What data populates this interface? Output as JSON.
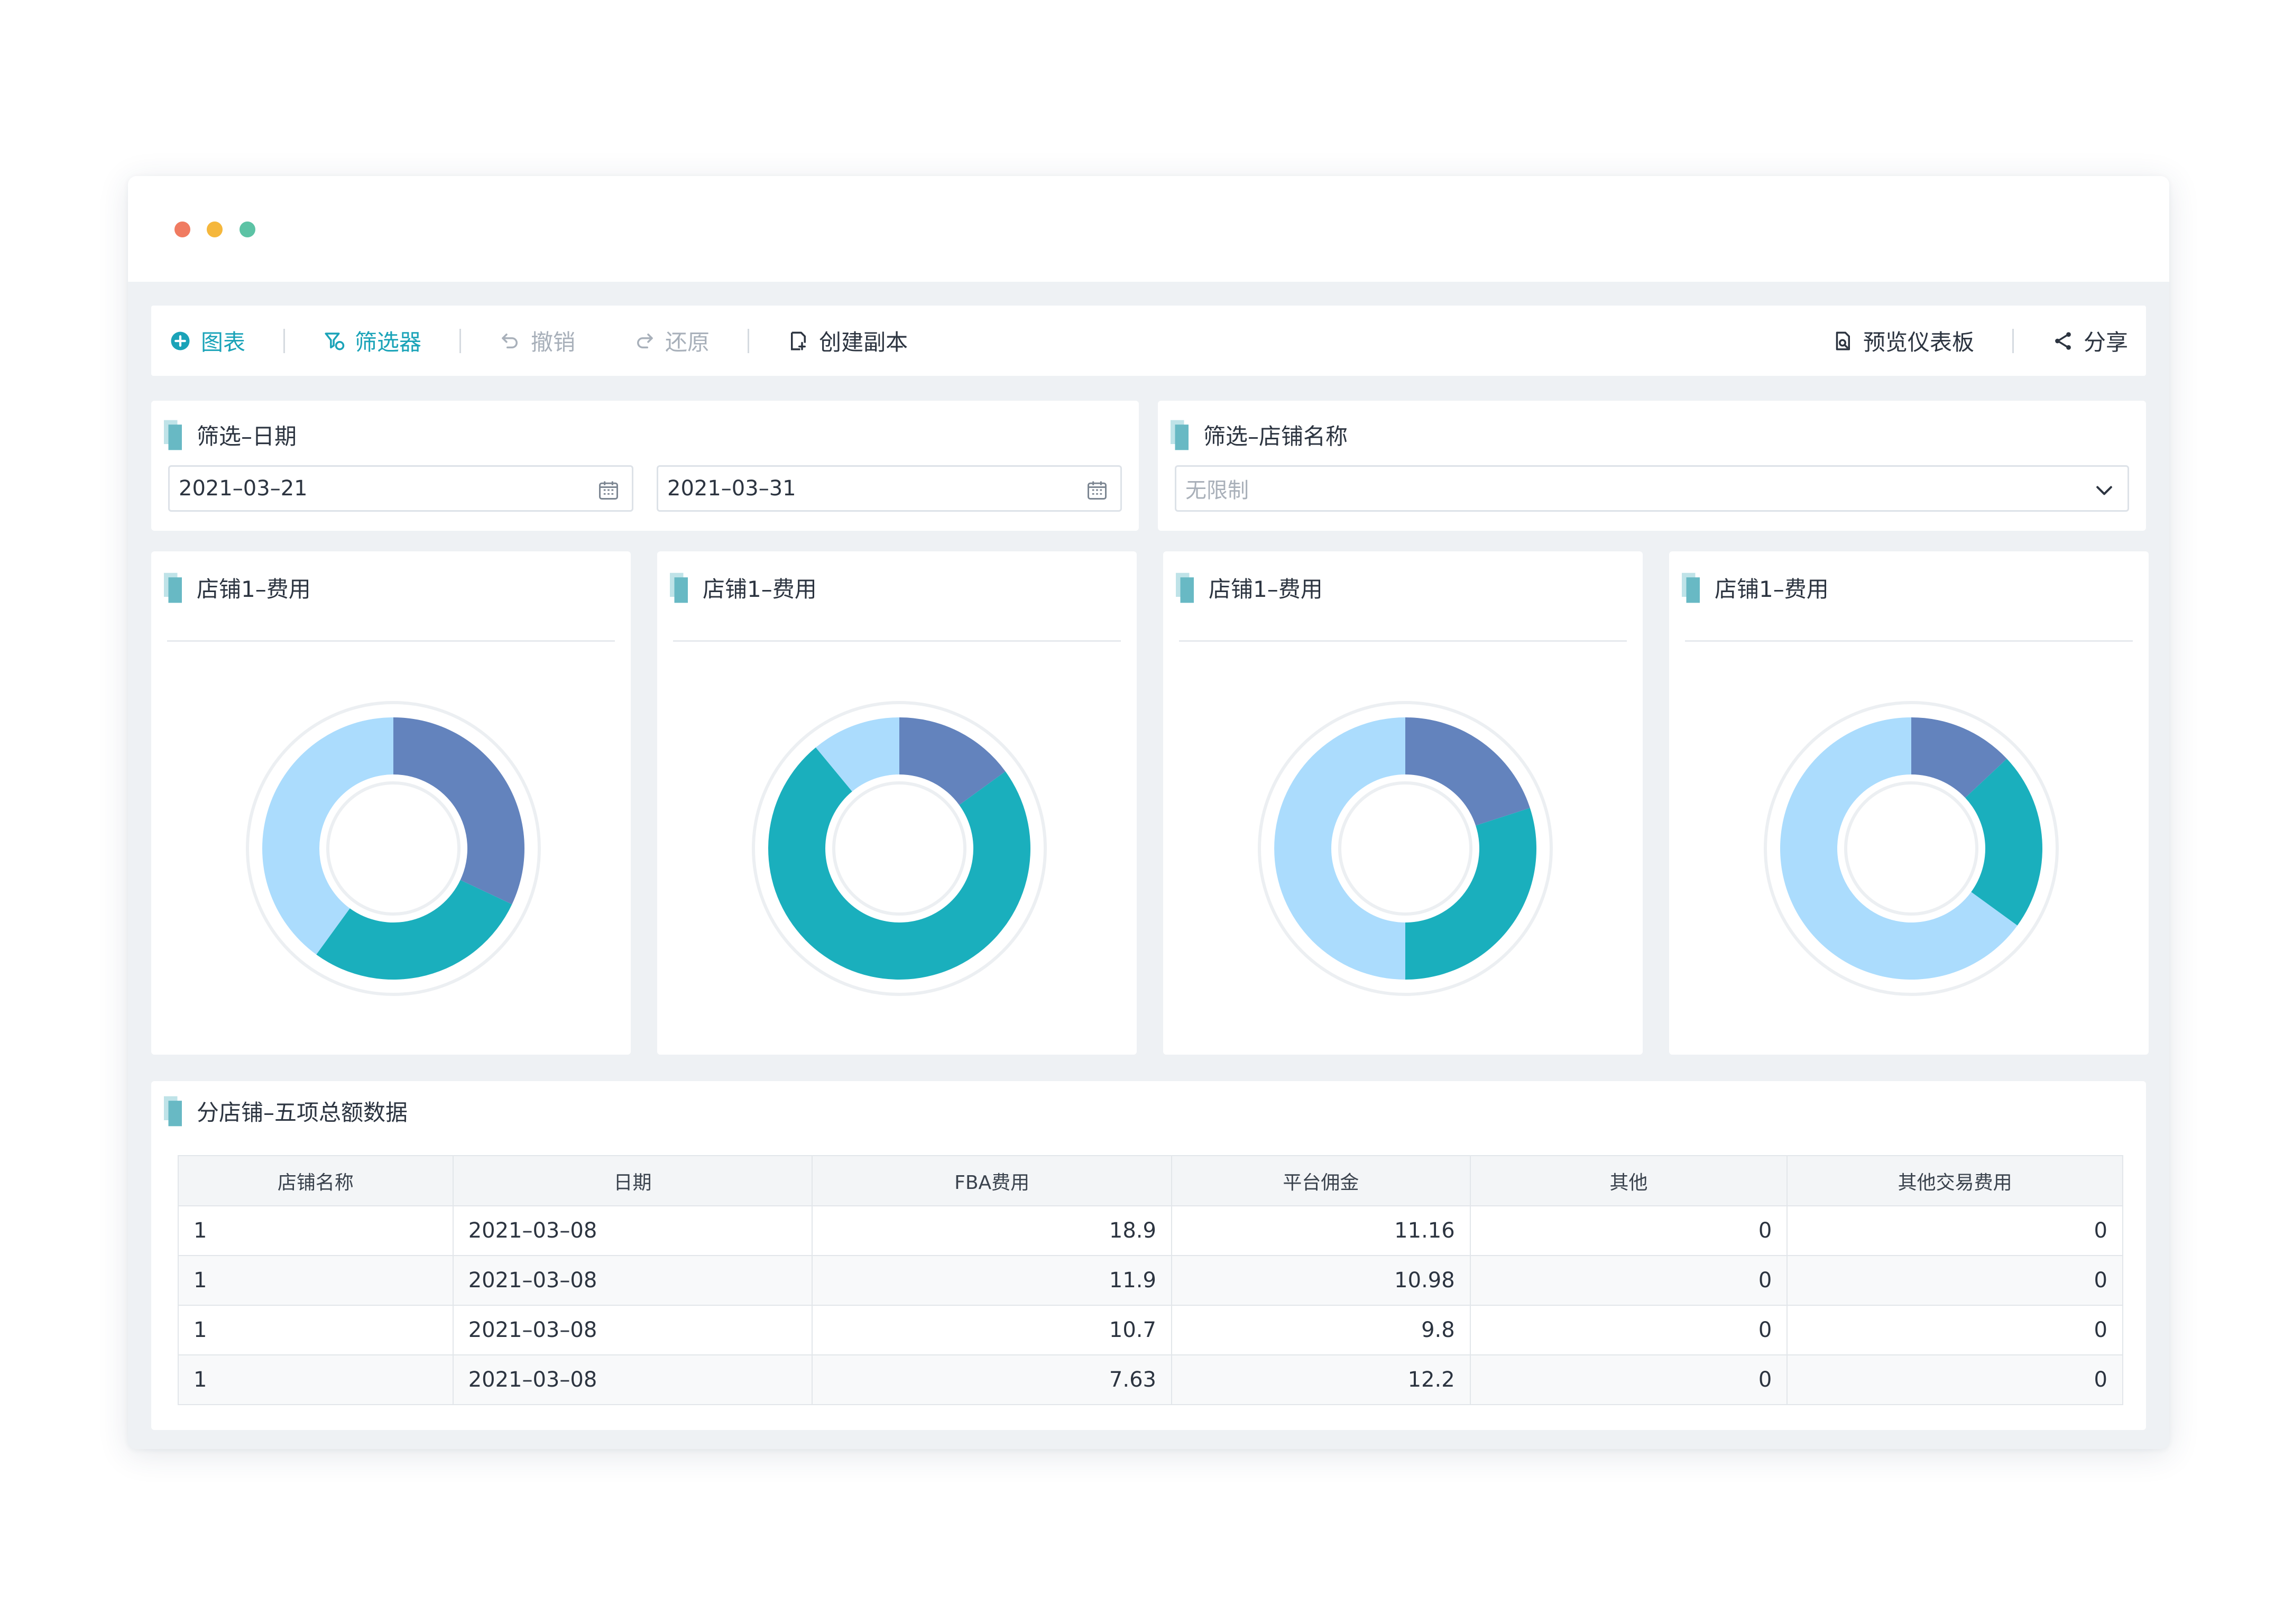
{
  "toolbar": {
    "chart_label": "图表",
    "filter_label": "筛选器",
    "undo_label": "撤销",
    "redo_label": "还原",
    "copy_label": "创建副本",
    "preview_label": "预览仪表板",
    "share_label": "分享"
  },
  "date_filter": {
    "title": "筛选–日期",
    "start_date": "2021–03–21",
    "end_date": "2021–03–31"
  },
  "store_filter": {
    "title": "筛选–店铺名称",
    "placeholder": "无限制"
  },
  "colors": {
    "dark_blue": "#6383bd",
    "teal": "#1aafbd",
    "light_blue": "#abdcfd",
    "accent": "#1aa3b8"
  },
  "chart_data": [
    {
      "type": "pie",
      "title": "店铺1–费用",
      "donut": true,
      "slices": [
        {
          "value": 0.32,
          "color": "#6383bd"
        },
        {
          "value": 0.28,
          "color": "#1aafbd"
        },
        {
          "value": 0.4,
          "color": "#abdcfd"
        }
      ]
    },
    {
      "type": "pie",
      "title": "店铺1–费用",
      "donut": true,
      "slices": [
        {
          "value": 0.15,
          "color": "#6383bd"
        },
        {
          "value": 0.74,
          "color": "#1aafbd"
        },
        {
          "value": 0.11,
          "color": "#abdcfd"
        }
      ]
    },
    {
      "type": "pie",
      "title": "店铺1–费用",
      "donut": true,
      "slices": [
        {
          "value": 0.2,
          "color": "#6383bd"
        },
        {
          "value": 0.3,
          "color": "#1aafbd"
        },
        {
          "value": 0.5,
          "color": "#abdcfd"
        }
      ]
    },
    {
      "type": "pie",
      "title": "店铺1–费用",
      "donut": true,
      "slices": [
        {
          "value": 0.13,
          "color": "#6383bd"
        },
        {
          "value": 0.22,
          "color": "#1aafbd"
        },
        {
          "value": 0.65,
          "color": "#abdcfd"
        }
      ]
    },
    {
      "type": "table",
      "title": "分店铺–五项总额数据",
      "columns": [
        "店铺名称",
        "日期",
        "FBA费用",
        "平台佣金",
        "其他",
        "其他交易费用"
      ],
      "rows": [
        [
          "1",
          "2021–03–08",
          "18.9",
          "11.16",
          "0",
          "0"
        ],
        [
          "1",
          "2021–03–08",
          "11.9",
          "10.98",
          "0",
          "0"
        ],
        [
          "1",
          "2021–03–08",
          "10.7",
          "9.8",
          "0",
          "0"
        ],
        [
          "1",
          "2021–03–08",
          "7.63",
          "12.2",
          "0",
          "0"
        ]
      ]
    }
  ]
}
